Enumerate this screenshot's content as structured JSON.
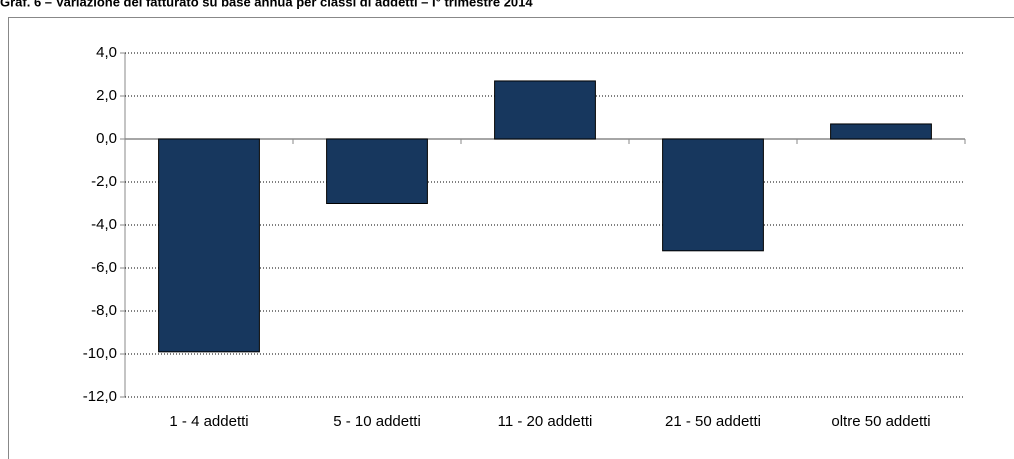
{
  "chart_data": {
    "type": "bar",
    "title": "Graf. 6 – Variazione del fatturato su base annua per classi di addetti – I° trimestre 2014",
    "categories": [
      "1 - 4 addetti",
      "5 - 10 addetti",
      "11 - 20 addetti",
      "21 - 50 addetti",
      "oltre 50 addetti"
    ],
    "values": [
      -9.9,
      -3.0,
      2.7,
      -5.2,
      0.7
    ],
    "color": "#17375e",
    "ylim": [
      -12,
      4
    ],
    "yticks": [
      {
        "value": -12,
        "label": "-12,0"
      },
      {
        "value": -10,
        "label": "-10,0"
      },
      {
        "value": -8,
        "label": "-8,0"
      },
      {
        "value": -6,
        "label": "-6,0"
      },
      {
        "value": -4,
        "label": "-4,0"
      },
      {
        "value": -2,
        "label": "-2,0"
      },
      {
        "value": 0,
        "label": "0,0"
      },
      {
        "value": 2,
        "label": "2,0"
      },
      {
        "value": 4,
        "label": "4,0"
      }
    ],
    "grid": true
  }
}
